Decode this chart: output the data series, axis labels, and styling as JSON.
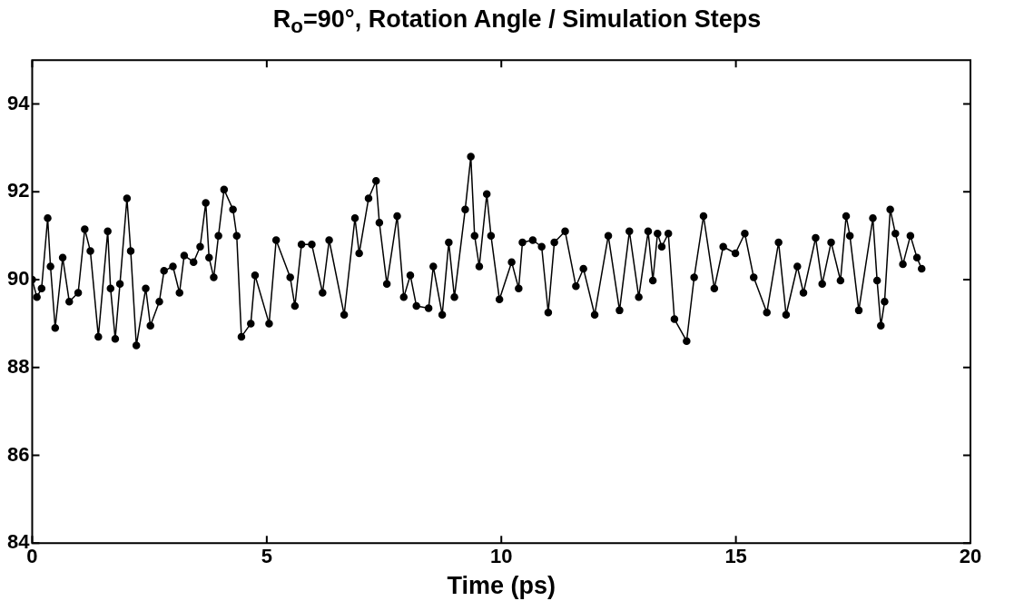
{
  "chart_data": {
    "type": "line",
    "title": "R$_{o}$=90°, Rotation Angle / Simulation Steps",
    "xlabel": "Time (ps)",
    "xlim": [
      0,
      20
    ],
    "xticks": [
      0,
      5,
      10,
      15,
      20
    ],
    "ylim": [
      84,
      95
    ],
    "yticks": [
      84,
      86,
      88,
      90,
      92,
      94
    ],
    "grid": false,
    "legend": false,
    "marker": "circle",
    "line_style": "solid",
    "series": [
      {
        "color": "#000000",
        "x": [
          0,
          0.1,
          0.2,
          0.33,
          0.39,
          0.49,
          0.65,
          0.79,
          0.98,
          1.12,
          1.24,
          1.41,
          1.61,
          1.67,
          1.77,
          1.87,
          2.02,
          2.1,
          2.22,
          2.42,
          2.52,
          2.71,
          2.81,
          3.0,
          3.14,
          3.24,
          3.44,
          3.58,
          3.7,
          3.77,
          3.87,
          3.97,
          4.09,
          4.28,
          4.36,
          4.46,
          4.66,
          4.75,
          5.05,
          5.2,
          5.5,
          5.6,
          5.74,
          5.96,
          6.19,
          6.33,
          6.65,
          6.88,
          6.97,
          7.17,
          7.33,
          7.4,
          7.56,
          7.78,
          7.92,
          8.06,
          8.19,
          8.45,
          8.55,
          8.74,
          8.88,
          9.0,
          9.23,
          9.35,
          9.43,
          9.53,
          9.69,
          9.78,
          9.96,
          10.22,
          10.37,
          10.45,
          10.67,
          10.86,
          11.0,
          11.13,
          11.36,
          11.59,
          11.75,
          11.99,
          12.28,
          12.52,
          12.73,
          12.93,
          13.13,
          13.23,
          13.33,
          13.42,
          13.56,
          13.69,
          13.95,
          14.11,
          14.31,
          14.54,
          14.73,
          14.99,
          15.19,
          15.38,
          15.66,
          15.91,
          16.07,
          16.31,
          16.44,
          16.7,
          16.84,
          17.03,
          17.23,
          17.35,
          17.43,
          17.62,
          17.92,
          18.01,
          18.09,
          18.17,
          18.29,
          18.4,
          18.56,
          18.72,
          18.86,
          18.96
        ],
        "values": [
          90.0,
          89.6,
          89.8,
          91.4,
          90.3,
          88.9,
          90.5,
          89.5,
          89.7,
          91.15,
          90.65,
          88.7,
          91.1,
          89.8,
          88.65,
          89.9,
          91.85,
          90.65,
          88.5,
          89.8,
          88.95,
          89.5,
          90.2,
          90.3,
          89.7,
          90.55,
          90.4,
          90.75,
          91.75,
          90.5,
          90.05,
          91.0,
          92.05,
          91.6,
          91.0,
          88.7,
          89.0,
          90.1,
          89.0,
          90.9,
          90.05,
          89.4,
          90.8,
          90.8,
          89.7,
          90.9,
          89.2,
          91.4,
          90.6,
          91.85,
          92.25,
          91.3,
          89.9,
          91.45,
          89.6,
          90.1,
          89.4,
          89.35,
          90.3,
          89.2,
          90.85,
          89.6,
          91.6,
          92.8,
          91.0,
          90.3,
          91.95,
          91.0,
          89.55,
          90.4,
          89.8,
          90.85,
          90.9,
          90.75,
          89.25,
          90.85,
          91.1,
          89.85,
          90.25,
          89.2,
          91.0,
          89.3,
          91.1,
          89.6,
          91.1,
          89.98,
          91.05,
          90.75,
          91.05,
          89.1,
          88.6,
          90.05,
          91.45,
          89.8,
          90.75,
          90.6,
          91.05,
          90.05,
          89.25,
          90.85,
          89.2,
          90.3,
          89.7,
          90.95,
          89.9,
          90.85,
          89.98,
          91.45,
          91.0,
          89.3,
          91.4,
          89.98,
          88.95,
          89.5,
          91.6,
          91.05,
          90.35,
          91.0,
          90.5,
          90.25
        ]
      }
    ]
  }
}
